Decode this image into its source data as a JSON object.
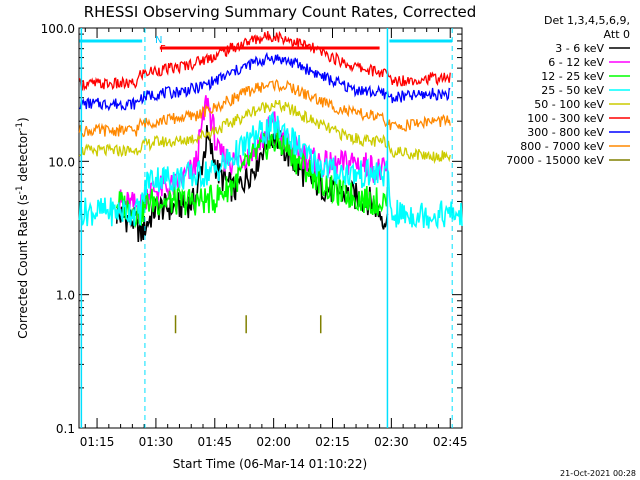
{
  "chart_data": {
    "type": "line",
    "title": "RHESSI Observing Summary Count Rates, Corrected",
    "xlabel": "Start Time (06-Mar-14 01:10:22)",
    "ylabel_main": "Corrected Count Rate (s",
    "ylabel_sup": "-1",
    "ylabel_mid": " detector",
    "ylabel_end": ")",
    "y_scale": "log",
    "ylim": [
      0.1,
      100
    ],
    "xlim_minutes": [
      70.4,
      168
    ],
    "y_ticks": [
      {
        "value": 100,
        "label": "100.0"
      },
      {
        "value": 10,
        "label": "10.0"
      },
      {
        "value": 1,
        "label": "1.0"
      },
      {
        "value": 0.1,
        "label": "0.1"
      }
    ],
    "x_ticks": [
      {
        "minute": 75,
        "label": "01:15"
      },
      {
        "minute": 90,
        "label": "01:30"
      },
      {
        "minute": 105,
        "label": "01:45"
      },
      {
        "minute": 120,
        "label": "02:00"
      },
      {
        "minute": 135,
        "label": "02:15"
      },
      {
        "minute": 150,
        "label": "02:30"
      },
      {
        "minute": 165,
        "label": "02:45"
      }
    ],
    "legend_header": [
      "Det 1,3,4,5,6,9,",
      "Att 0"
    ],
    "legend_placement": "right",
    "series": [
      {
        "name": "3 - 6 keV",
        "color": "#000000",
        "x": [
          80,
          85,
          86,
          90,
          95,
          100,
          103,
          106,
          110,
          115,
          118,
          120,
          123,
          126,
          130,
          135,
          140,
          145,
          149
        ],
        "y": [
          4.0,
          3.5,
          2.8,
          4.5,
          4.5,
          5.0,
          15.0,
          8.0,
          6.0,
          9.0,
          14.0,
          16.0,
          12.0,
          9.0,
          7.0,
          6.0,
          5.5,
          5.0,
          3.5
        ]
      },
      {
        "name": "6 - 12 keV",
        "color": "#ff00ff",
        "x": [
          80,
          86,
          88,
          95,
          100,
          103,
          106,
          110,
          115,
          118,
          120,
          122,
          126,
          130,
          135,
          140,
          145,
          149
        ],
        "y": [
          5.0,
          4.5,
          6.0,
          6.5,
          9.0,
          30.0,
          11.0,
          10.0,
          12.0,
          16.0,
          20.0,
          15.0,
          12.0,
          10.0,
          9.0,
          10.0,
          9.0,
          8.0
        ]
      },
      {
        "name": "12 - 25 keV",
        "color": "#00ff00",
        "x": [
          80,
          86,
          88,
          95,
          100,
          105,
          110,
          115,
          118,
          120,
          123,
          126,
          130,
          135,
          140,
          145,
          149
        ],
        "y": [
          5.0,
          4.0,
          5.0,
          5.0,
          5.0,
          5.2,
          7.0,
          11.0,
          13.0,
          14.0,
          13.0,
          10.0,
          8.0,
          6.0,
          5.5,
          5.0,
          5.0
        ]
      },
      {
        "name": "25 - 50 keV",
        "color": "#00ffff",
        "x": [
          70.5,
          86,
          88,
          95,
          100,
          105,
          110,
          115,
          118,
          120,
          123,
          126,
          130,
          135,
          140,
          145,
          149,
          150,
          168
        ],
        "y": [
          4.2,
          4.2,
          7.5,
          7.5,
          7.8,
          8.5,
          11.0,
          15.0,
          17.0,
          18.0,
          17.0,
          13.0,
          10.0,
          8.5,
          8.0,
          8.0,
          8.0,
          4.0,
          4.0
        ]
      },
      {
        "name": "50 - 100 keV",
        "color": "#cccc00",
        "x": [
          70.5,
          85,
          86,
          90,
          95,
          100,
          105,
          110,
          115,
          120,
          125,
          130,
          135,
          140,
          145,
          149,
          150,
          160,
          165
        ],
        "y": [
          12.0,
          12.0,
          13.0,
          14.0,
          14.0,
          15.0,
          17.0,
          20.0,
          24.0,
          27.0,
          24.0,
          20.0,
          17.0,
          15.0,
          14.0,
          14.0,
          12.0,
          11.0,
          11.0
        ]
      },
      {
        "name": "100 - 300 keV",
        "color": "#ff0000",
        "x": [
          70.5,
          85,
          86,
          90,
          95,
          100,
          105,
          110,
          115,
          120,
          125,
          130,
          135,
          140,
          145,
          149,
          150,
          160,
          165
        ],
        "y": [
          38.0,
          38.0,
          45.0,
          48.0,
          50.0,
          55.0,
          62.0,
          72.0,
          82.0,
          88.0,
          80.0,
          70.0,
          60.0,
          52.0,
          48.0,
          45.0,
          40.0,
          42.0,
          42.0
        ]
      },
      {
        "name": "300 - 800 keV",
        "color": "#0000ff",
        "x": [
          70.5,
          85,
          86,
          90,
          95,
          100,
          105,
          110,
          115,
          120,
          125,
          130,
          135,
          140,
          145,
          149,
          150,
          160,
          165
        ],
        "y": [
          27.0,
          27.0,
          30.0,
          32.0,
          33.0,
          35.0,
          40.0,
          47.0,
          55.0,
          60.0,
          55.0,
          47.0,
          40.0,
          35.0,
          33.0,
          32.0,
          30.0,
          32.0,
          32.0
        ]
      },
      {
        "name": "800 - 7000 keV",
        "color": "#ff8800",
        "x": [
          70.5,
          85,
          86,
          90,
          95,
          100,
          105,
          110,
          115,
          120,
          125,
          130,
          135,
          140,
          145,
          149,
          150,
          160,
          165
        ],
        "y": [
          17.0,
          17.0,
          19.0,
          20.0,
          21.0,
          22.0,
          25.0,
          30.0,
          35.0,
          38.0,
          35.0,
          30.0,
          26.0,
          23.0,
          22.0,
          20.0,
          18.0,
          20.0,
          20.0
        ]
      },
      {
        "name": "7000 - 15000 keV",
        "color": "#808000",
        "x": [
          95,
          113,
          132
        ],
        "y": [
          0.6,
          0.6,
          0.6
        ]
      }
    ]
  },
  "annotations": {
    "att_state_marker": "N",
    "flag_marker": "F"
  },
  "footer_timestamp": "21-Oct-2021 00:28"
}
